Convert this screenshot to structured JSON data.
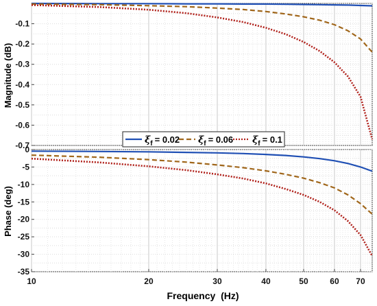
{
  "chart_data": [
    {
      "type": "line",
      "ylabel": "Magnitude (dB)",
      "xlabel": "",
      "x_scale": "log",
      "xlim": [
        10,
        75
      ],
      "ylim": [
        -0.7,
        0
      ],
      "yticks": [
        -0.1,
        -0.2,
        -0.3,
        -0.4,
        -0.5,
        -0.6,
        -0.7
      ],
      "ytick_labels": [
        "-0.1",
        "-0.2",
        "-0.3",
        "-0.4",
        "-0.5",
        "-0.6",
        "-0.7"
      ],
      "grid": true,
      "x": [
        10,
        15,
        20,
        25,
        30,
        35,
        40,
        45,
        50,
        55,
        60,
        65,
        70,
        75
      ],
      "series": [
        {
          "symbol": "ξ",
          "subscript": "f",
          "value_text": "= 0.02",
          "color": "#1f4fb4",
          "dash": "solid",
          "values": [
            0,
            -0.001,
            -0.001,
            -0.002,
            -0.002,
            -0.003,
            -0.003,
            -0.004,
            -0.005,
            -0.006,
            -0.007,
            -0.008,
            -0.01,
            -0.012
          ]
        },
        {
          "symbol": "ξ",
          "subscript": "f",
          "value_text": "= 0.06",
          "color": "#a0661a",
          "dash": "dashed",
          "values": [
            -0.003,
            -0.006,
            -0.011,
            -0.016,
            -0.023,
            -0.03,
            -0.04,
            -0.052,
            -0.066,
            -0.083,
            -0.105,
            -0.135,
            -0.175,
            -0.24
          ]
        },
        {
          "symbol": "ξ",
          "subscript": "f",
          "value_text": "= 0.1",
          "color": "#b0201a",
          "dash": "dotted",
          "values": [
            -0.008,
            -0.018,
            -0.031,
            -0.048,
            -0.069,
            -0.092,
            -0.12,
            -0.152,
            -0.19,
            -0.235,
            -0.29,
            -0.36,
            -0.46,
            -0.67
          ]
        }
      ],
      "legend": "bottom-right inside magnitude panel"
    },
    {
      "type": "line",
      "ylabel": "Phase (deg)",
      "xlabel": "Frequency  (Hz)",
      "x_scale": "log",
      "xlim": [
        10,
        75
      ],
      "ylim": [
        -35,
        0
      ],
      "yticks": [
        0,
        -5,
        -10,
        -15,
        -20,
        -25,
        -30,
        -35
      ],
      "ytick_labels": [
        "0",
        "-5",
        "-10",
        "-15",
        "-20",
        "-25",
        "-30",
        "-35"
      ],
      "xticks": [
        10,
        20,
        30,
        40,
        50,
        60,
        70
      ],
      "xtick_labels": [
        "10",
        "20",
        "30",
        "40",
        "50",
        "60",
        "70"
      ],
      "grid": true,
      "x": [
        10,
        15,
        20,
        25,
        30,
        35,
        40,
        45,
        50,
        55,
        60,
        65,
        70,
        75
      ],
      "series": [
        {
          "color": "#1f4fb4",
          "dash": "solid",
          "values": [
            -0.45,
            -0.55,
            -0.65,
            -0.8,
            -0.95,
            -1.15,
            -1.4,
            -1.7,
            -2.1,
            -2.6,
            -3.2,
            -4.0,
            -5.0,
            -6.2
          ]
        },
        {
          "color": "#a0661a",
          "dash": "dashed",
          "values": [
            -1.6,
            -2.2,
            -2.9,
            -3.6,
            -4.4,
            -5.2,
            -6.1,
            -7.1,
            -8.2,
            -9.5,
            -11.0,
            -13.0,
            -15.5,
            -18.5
          ]
        },
        {
          "color": "#b0201a",
          "dash": "dotted",
          "values": [
            -2.6,
            -3.7,
            -4.8,
            -5.9,
            -7.1,
            -8.3,
            -9.7,
            -11.3,
            -13.0,
            -15.0,
            -17.4,
            -20.5,
            -24.5,
            -30.5
          ]
        }
      ]
    }
  ]
}
